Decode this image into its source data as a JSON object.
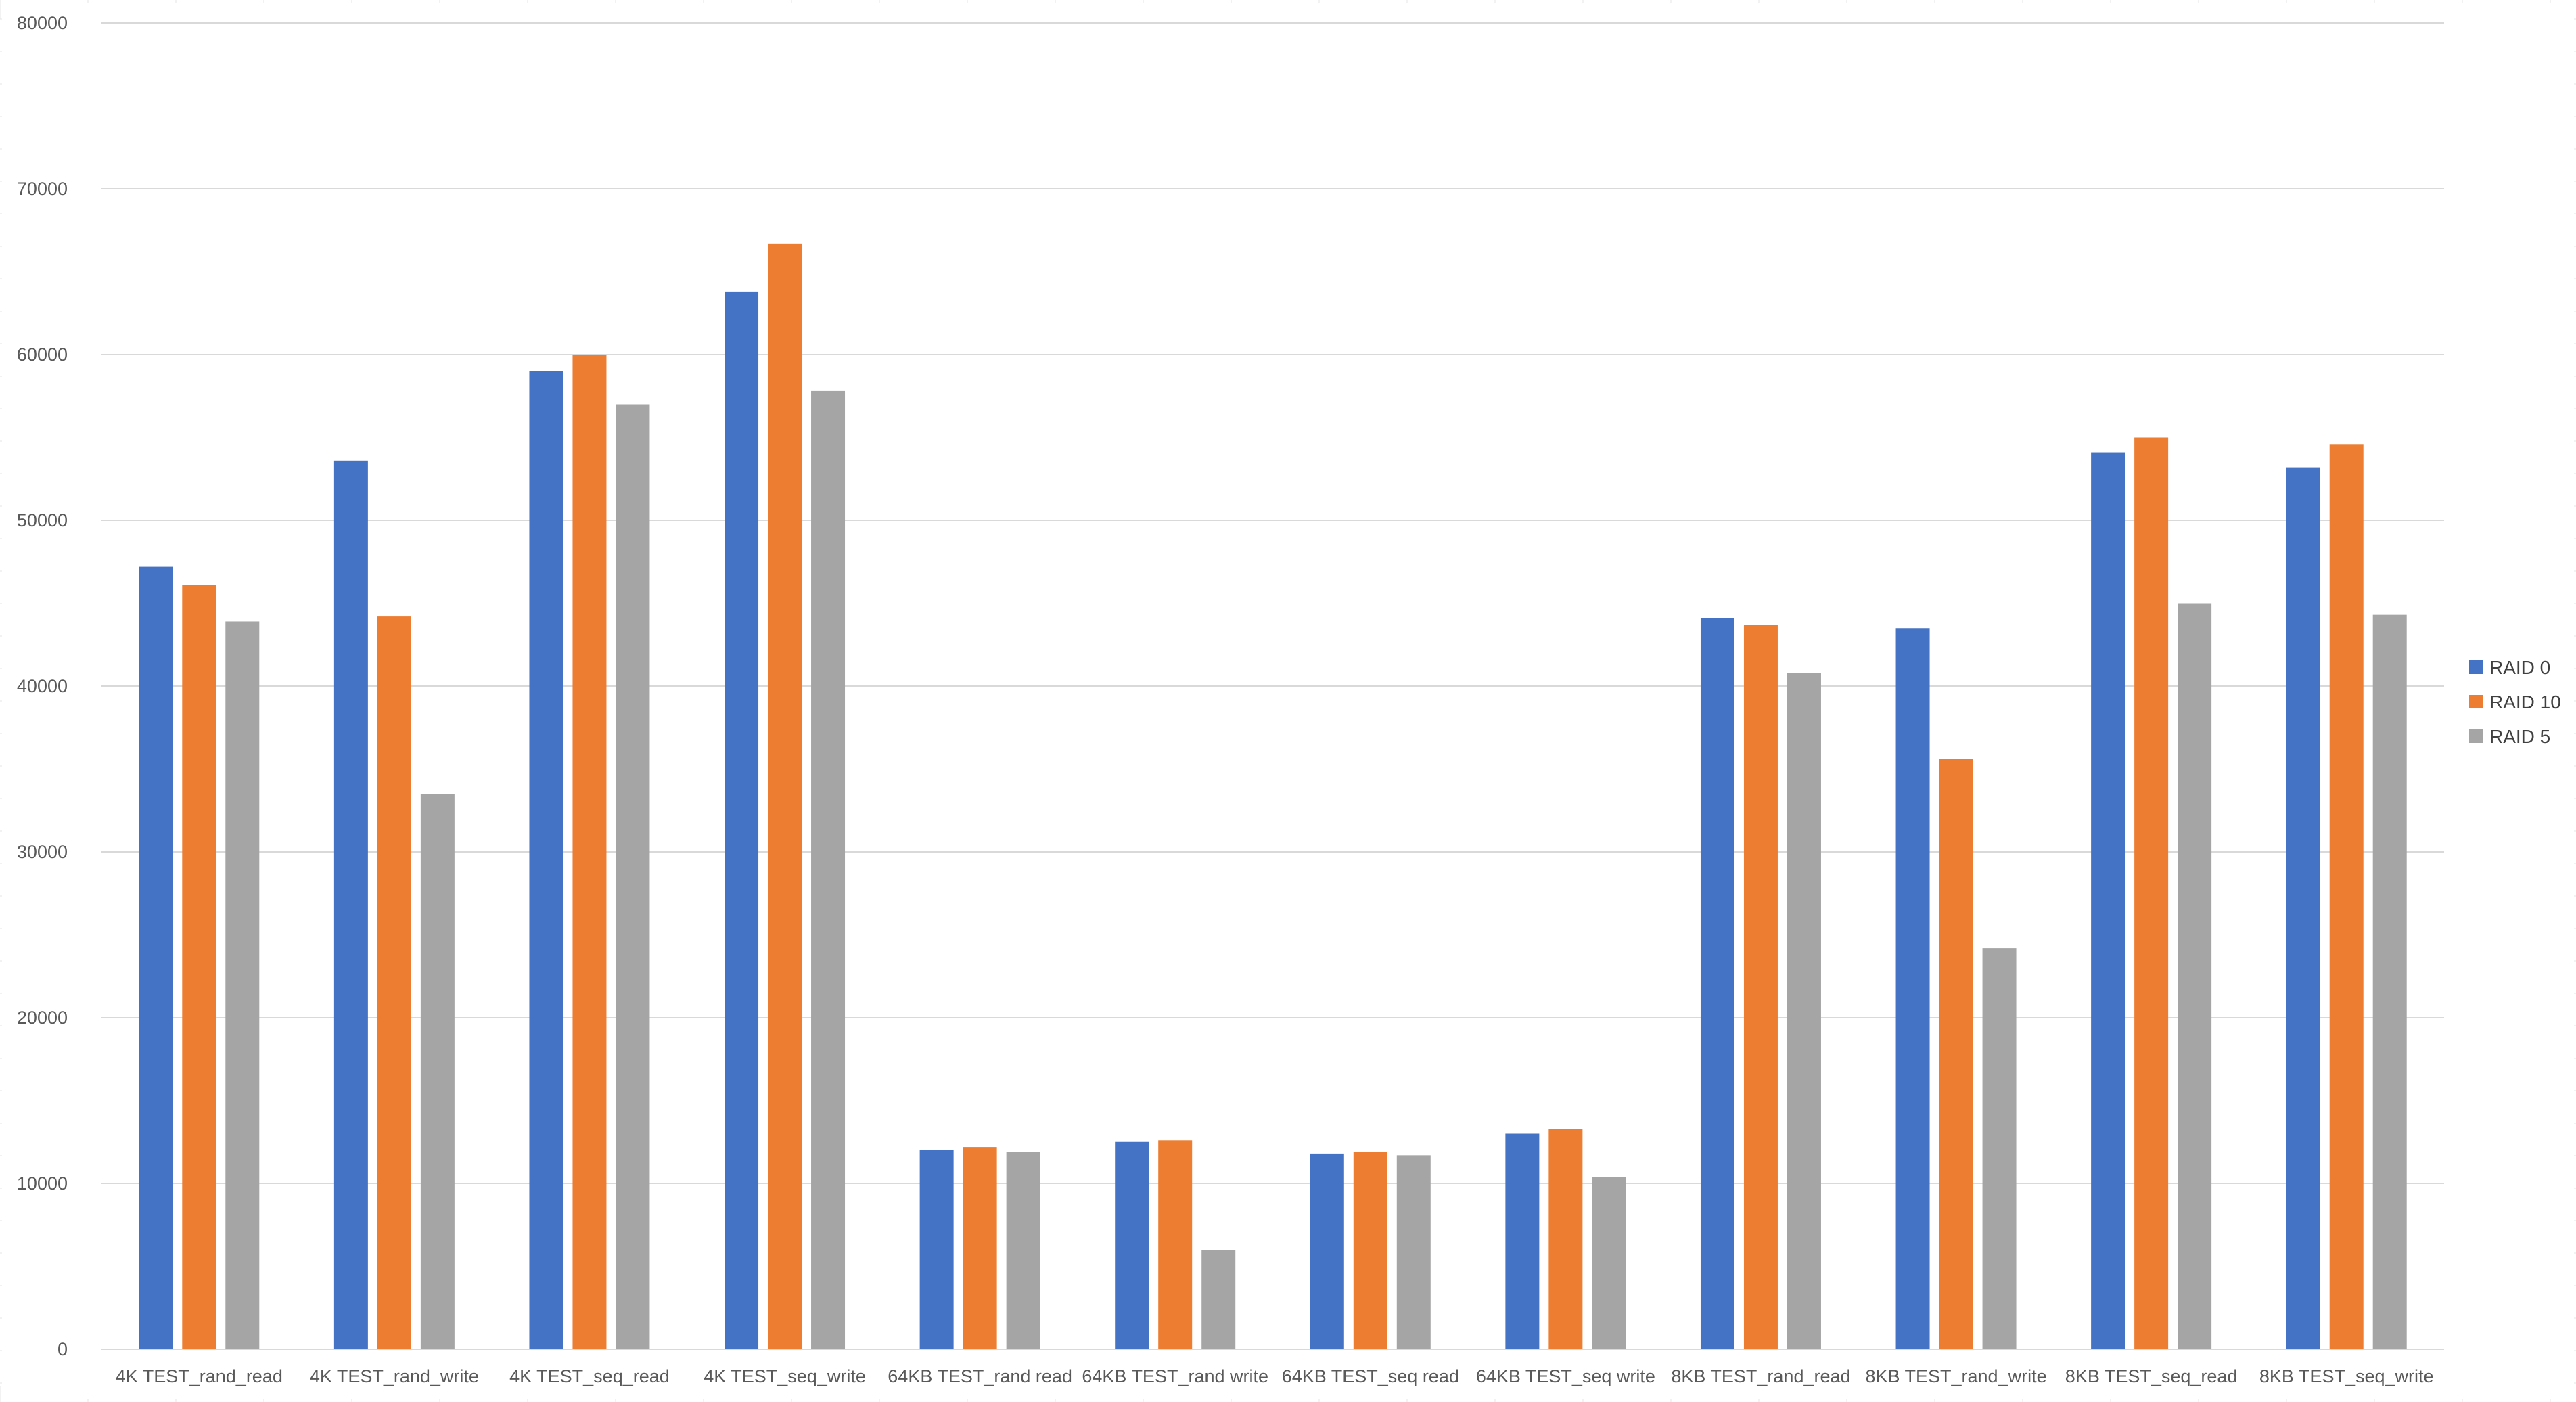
{
  "colors": {
    "background": "#ffffff",
    "gridline": "#d9d9d9",
    "sheet_grid": "#e4e4e4",
    "axis_text": "#595959"
  },
  "chart_data": {
    "type": "bar",
    "title": "",
    "xlabel": "",
    "ylabel": "",
    "ylim": [
      0,
      80000
    ],
    "ytick_step": 10000,
    "yticks": [
      "0",
      "10000",
      "20000",
      "30000",
      "40000",
      "50000",
      "60000",
      "70000",
      "80000"
    ],
    "grid": true,
    "legend_position": "right",
    "categories": [
      "4K TEST_rand_read",
      "4K TEST_rand_write",
      "4K TEST_seq_read",
      "4K TEST_seq_write",
      "64KB TEST_rand read",
      "64KB TEST_rand write",
      "64KB TEST_seq read",
      "64KB TEST_seq write",
      "8KB TEST_rand_read",
      "8KB TEST_rand_write",
      "8KB TEST_seq_read",
      "8KB TEST_seq_write"
    ],
    "series": [
      {
        "name": "RAID 0",
        "color": "#4472c4",
        "values": [
          47200,
          53600,
          59000,
          63800,
          12000,
          12500,
          11800,
          13000,
          44100,
          43500,
          54100,
          53200
        ]
      },
      {
        "name": "RAID 10",
        "color": "#ed7d31",
        "values": [
          46100,
          44200,
          60000,
          66700,
          12200,
          12600,
          11900,
          13300,
          43700,
          35600,
          55000,
          54600
        ]
      },
      {
        "name": "RAID 5",
        "color": "#a5a5a5",
        "values": [
          43900,
          33500,
          57000,
          57800,
          11900,
          6000,
          11700,
          10400,
          40800,
          24200,
          45000,
          44300
        ]
      }
    ]
  }
}
